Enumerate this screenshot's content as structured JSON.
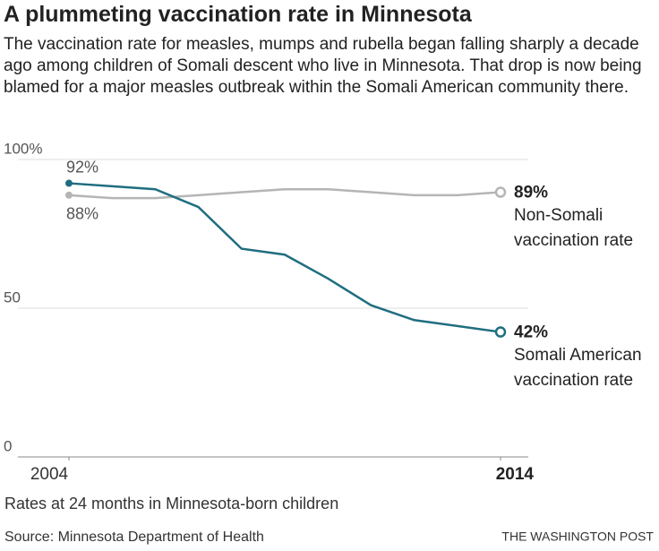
{
  "title": "A plummeting vaccination rate in Minnesota",
  "subtitle": "The vaccination rate for measles, mumps and rubella began falling sharply a decade ago among children of Somali descent who live in Minnesota. That drop is now being blamed for a major measles outbreak within the Somali American community there.",
  "chart_data": {
    "type": "line",
    "x": [
      2004,
      2005,
      2006,
      2007,
      2008,
      2009,
      2010,
      2011,
      2012,
      2013,
      2014
    ],
    "xlim": [
      2004,
      2014
    ],
    "xticks": [
      2004,
      2014
    ],
    "ylim": [
      0,
      100
    ],
    "yticks": [
      0,
      50,
      {
        "value": 100,
        "label": "100%"
      }
    ],
    "grid": true,
    "series": [
      {
        "name": "Non-Somali vaccination rate",
        "color": "#b5b5b5",
        "values": [
          88,
          87,
          87,
          88,
          89,
          90,
          90,
          89,
          88,
          88,
          89
        ],
        "value_labels": [
          "88%",
          null,
          null,
          null,
          null,
          null,
          null,
          null,
          null,
          null,
          "89%"
        ]
      },
      {
        "name": "Somali American vaccination rate",
        "color": "#1f6e80",
        "values": [
          92,
          91,
          90,
          84,
          70,
          68,
          60,
          51,
          46,
          44,
          42
        ],
        "value_labels": [
          "92%",
          null,
          null,
          null,
          null,
          null,
          null,
          null,
          null,
          null,
          "42%"
        ]
      }
    ],
    "note": "Rates at 24 months in Minnesota-born children"
  },
  "source": "Source: Minnesota Department of Health",
  "credit": "THE WASHINGTON POST"
}
